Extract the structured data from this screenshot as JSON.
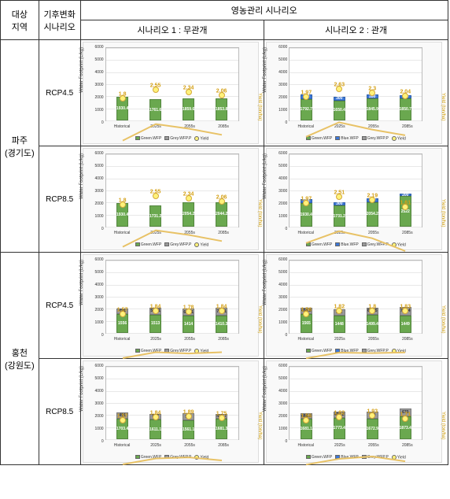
{
  "header": {
    "region": "대상\n지역",
    "climate": "기후변화\n시나리오",
    "main": "영농관리 시나리오",
    "scen1": "시나리오 1 : 무관개",
    "scen2": "시나리오 2 : 관개"
  },
  "axes": {
    "y_label": "Water Footprint (L/kg)",
    "y2_label": "Yield (ton/ha)",
    "y_max": 6000,
    "y_ticks": [
      0,
      1000,
      2000,
      3000,
      4000,
      5000,
      6000
    ],
    "y2_max": 6,
    "x_labels": [
      "Historical",
      "2025s",
      "2055s",
      "2085s"
    ]
  },
  "colors": {
    "green": "#6aa84f",
    "blue": "#3c78d8",
    "grey": "#999999",
    "yield_line": "#e8c266",
    "yield_pt_fill": "#fff27a",
    "yield_pt_border": "#d4a83a",
    "plot_bg": "#ffffff"
  },
  "legends": {
    "green": "Green.WFP",
    "blue": "Blue.WFP",
    "grey": "Grey.WFP.P",
    "yield": "Yield"
  },
  "rows": [
    {
      "region": "파주\n(경기도)",
      "scenarios": [
        {
          "rcp": "RCP4.5",
          "charts": [
            {
              "id": "p45-1",
              "bars": [
                {
                  "green": 1930.4
                },
                {
                  "green": 1761.6
                },
                {
                  "green": 1859.6
                },
                {
                  "green": 1853.8
                }
              ],
              "yield": [
                1.8,
                2.55,
                2.34,
                2.06
              ],
              "legend": [
                "green",
                "grey",
                "yield"
              ]
            },
            {
              "id": "p45-2",
              "bars": [
                {
                  "green": 1792.7,
                  "blue": 350
                },
                {
                  "green": 1650.4,
                  "blue": 300
                },
                {
                  "green": 1845.9,
                  "blue": 280
                },
                {
                  "green": 1850.7,
                  "blue": 250
                }
              ],
              "yield": [
                1.97,
                2.63,
                2.3,
                2.04
              ],
              "legend": [
                "green",
                "blue",
                "grey",
                "yield"
              ]
            }
          ]
        },
        {
          "rcp": "RCP8.5",
          "charts": [
            {
              "id": "p85-1",
              "bars": [
                {
                  "green": 1930.4
                },
                {
                  "green": 1731.2
                },
                {
                  "green": 2054.2
                },
                {
                  "green": 2044.2
                }
              ],
              "yield": [
                1.8,
                2.55,
                2.34,
                2.06
              ],
              "legend": [
                "green",
                "grey",
                "yield"
              ]
            },
            {
              "id": "p85-2",
              "bars": [
                {
                  "green": 1930.4,
                  "blue": 350
                },
                {
                  "green": 1731.2,
                  "blue": 300
                },
                {
                  "green": 2054.2,
                  "blue": 280
                },
                {
                  "green": 2522,
                  "blue": 200
                }
              ],
              "yield": [
                1.97,
                2.51,
                2.19,
                1.61
              ],
              "legend": [
                "green",
                "blue",
                "grey",
                "yield"
              ]
            }
          ]
        }
      ]
    },
    {
      "region": "홍천\n(강원도)",
      "scenarios": [
        {
          "rcp": "RCP4.5",
          "charts": [
            {
              "id": "h45-1",
              "bars": [
                {
                  "green": 1556,
                  "grey": 491
                },
                {
                  "green": 1513,
                  "grey": 580.1
                },
                {
                  "green": 1414,
                  "grey": 616.1
                },
                {
                  "green": 1410.3,
                  "grey": 704.1
                }
              ],
              "yield": [
                1.57,
                1.84,
                1.78,
                1.84
              ],
              "legend": [
                "green",
                "grey",
                "yield"
              ]
            },
            {
              "id": "h45-2",
              "bars": [
                {
                  "green": 1565,
                  "grey": 494.8
                },
                {
                  "green": 1448,
                  "grey": 522
                },
                {
                  "green": 1499.4,
                  "grey": 610.5
                },
                {
                  "green": 1449,
                  "grey": 716.4
                }
              ],
              "yield": [
                1.56,
                1.82,
                1.8,
                1.83
              ],
              "legend": [
                "green",
                "blue",
                "grey",
                "yield"
              ]
            }
          ]
        },
        {
          "rcp": "RCP8.5",
          "charts": [
            {
              "id": "h85-1",
              "bars": [
                {
                  "green": 1703.4,
                  "grey": 491
                },
                {
                  "green": 1611.1,
                  "grey": 500
                },
                {
                  "green": 1561.1,
                  "grey": 590
                },
                {
                  "green": 1681.3,
                  "grey": 415.7
                }
              ],
              "yield": [
                1.57,
                1.84,
                1.89,
                1.75
              ],
              "legend": [
                "green",
                "grey",
                "yield"
              ]
            },
            {
              "id": "h85-2",
              "bars": [
                {
                  "green": 1681.1,
                  "grey": 484.2
                },
                {
                  "green": 1773.4,
                  "grey": 497.2
                },
                {
                  "green": 1672.9,
                  "grey": 610
                },
                {
                  "green": 1873.4,
                  "grey": 670
                }
              ],
              "yield": [
                1.56,
                1.82,
                1.93,
                1.71
              ],
              "legend": [
                "green",
                "blue",
                "grey",
                "yield"
              ]
            }
          ]
        }
      ]
    }
  ]
}
